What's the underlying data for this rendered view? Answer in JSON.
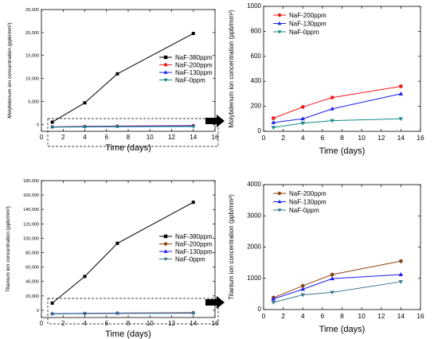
{
  "chart_data": [
    {
      "id": "mo-full",
      "type": "line",
      "xlabel": "Time (days)",
      "ylabel": "Molybdenum ion concentration (ppb/mm²)",
      "xlim": [
        0,
        16
      ],
      "ylim": [
        -1500,
        25000
      ],
      "xticks": [
        0,
        2,
        4,
        6,
        8,
        10,
        12,
        14,
        16
      ],
      "yticks": [
        0,
        5000,
        10000,
        15000,
        20000,
        25000
      ],
      "ytick_labels": [
        "0",
        "5,000",
        "10,000",
        "15,000",
        "20,000",
        "25,000"
      ],
      "legend_position": "center-right",
      "series": [
        {
          "name": "NaF-380ppm",
          "color": "#000000",
          "marker": "square",
          "x": [
            1,
            4,
            7,
            14
          ],
          "y": [
            500,
            4700,
            11000,
            19800
          ]
        },
        {
          "name": "NaF-200ppm",
          "color": "#ee1c1c",
          "marker": "circle",
          "x": [
            1,
            4,
            7,
            14
          ],
          "y": [
            -520,
            -420,
            -360,
            -250
          ]
        },
        {
          "name": "NaF-130ppm",
          "color": "#1c1cee",
          "marker": "triangle-up",
          "x": [
            1,
            4,
            7,
            14
          ],
          "y": [
            -560,
            -480,
            -420,
            -320
          ]
        },
        {
          "name": "NaF-0ppm",
          "color": "#138a8a",
          "marker": "triangle-down",
          "x": [
            1,
            4,
            7,
            14
          ],
          "y": [
            -600,
            -540,
            -500,
            -470
          ]
        }
      ]
    },
    {
      "id": "mo-zoom",
      "type": "line",
      "xlabel": "Time (days)",
      "ylabel": "Molybdenum ion concentration (ppb/mm²)",
      "xlim": [
        0,
        16
      ],
      "ylim": [
        0,
        1000
      ],
      "xticks": [
        0,
        2,
        4,
        6,
        8,
        10,
        12,
        14,
        16
      ],
      "yticks": [
        0,
        200,
        400,
        600,
        800,
        1000
      ],
      "ytick_labels": [
        "0",
        "200",
        "400",
        "600",
        "800",
        "1000"
      ],
      "legend_position": "top-left",
      "series": [
        {
          "name": "NaF-200ppm",
          "color": "#ee1c1c",
          "marker": "circle",
          "x": [
            1,
            4,
            7,
            14
          ],
          "y": [
            105,
            195,
            270,
            360
          ]
        },
        {
          "name": "NaF-130ppm",
          "color": "#1c1cee",
          "marker": "triangle-up",
          "x": [
            1,
            4,
            7,
            14
          ],
          "y": [
            70,
            100,
            180,
            300
          ]
        },
        {
          "name": "NaF-0ppm",
          "color": "#138a8a",
          "marker": "triangle-down",
          "x": [
            1,
            4,
            7,
            14
          ],
          "y": [
            30,
            65,
            85,
            100
          ]
        }
      ]
    },
    {
      "id": "ti-full",
      "type": "line",
      "xlabel": "Time (days)",
      "ylabel": "Titanium ion concentration (ppb/mm²)",
      "xlim": [
        0,
        16
      ],
      "ylim": [
        -10000,
        180000
      ],
      "xticks": [
        0,
        2,
        4,
        6,
        8,
        10,
        12,
        14,
        16
      ],
      "yticks": [
        0,
        20000,
        40000,
        60000,
        80000,
        100000,
        120000,
        140000,
        160000,
        180000
      ],
      "ytick_labels": [
        "0",
        "20,000",
        "40,000",
        "60,000",
        "80,000",
        "100,000",
        "120,000",
        "140,000",
        "160,000",
        "180,000"
      ],
      "legend_position": "center-right",
      "series": [
        {
          "name": "NaF-380ppm",
          "color": "#000000",
          "marker": "square",
          "x": [
            1,
            4,
            7,
            14
          ],
          "y": [
            10000,
            47000,
            93000,
            150000
          ]
        },
        {
          "name": "NaF-200ppm",
          "color": "#8b4513",
          "marker": "circle",
          "x": [
            1,
            4,
            7,
            14
          ],
          "y": [
            -4700,
            -4200,
            -3800,
            -3200
          ]
        },
        {
          "name": "NaF-130ppm",
          "color": "#1c1cee",
          "marker": "triangle-up",
          "x": [
            1,
            4,
            7,
            14
          ],
          "y": [
            -4800,
            -4400,
            -4100,
            -3800
          ]
        },
        {
          "name": "NaF-0ppm",
          "color": "#3a7a8c",
          "marker": "triangle-down",
          "x": [
            1,
            4,
            7,
            14
          ],
          "y": [
            -5000,
            -4600,
            -4400,
            -4100
          ]
        }
      ]
    },
    {
      "id": "ti-zoom",
      "type": "line",
      "xlabel": "Time (days)",
      "ylabel": "Titanium ion concentration (ppb/mm²)",
      "xlim": [
        0,
        16
      ],
      "ylim": [
        0,
        4000
      ],
      "xticks": [
        0,
        2,
        4,
        6,
        8,
        10,
        12,
        14,
        16
      ],
      "yticks": [
        0,
        1000,
        2000,
        3000,
        4000
      ],
      "ytick_labels": [
        "0",
        "1000",
        "2000",
        "3000",
        "4000"
      ],
      "legend_position": "top-left",
      "series": [
        {
          "name": "NaF-200ppm",
          "color": "#8b4513",
          "marker": "circle",
          "x": [
            1,
            4,
            7,
            14
          ],
          "y": [
            380,
            760,
            1120,
            1550
          ]
        },
        {
          "name": "NaF-130ppm",
          "color": "#1c1cee",
          "marker": "triangle-up",
          "x": [
            1,
            4,
            7,
            14
          ],
          "y": [
            340,
            650,
            990,
            1120
          ]
        },
        {
          "name": "NaF-0ppm",
          "color": "#3a7a8c",
          "marker": "triangle-down",
          "x": [
            1,
            4,
            7,
            14
          ],
          "y": [
            230,
            470,
            550,
            890
          ]
        }
      ]
    }
  ]
}
